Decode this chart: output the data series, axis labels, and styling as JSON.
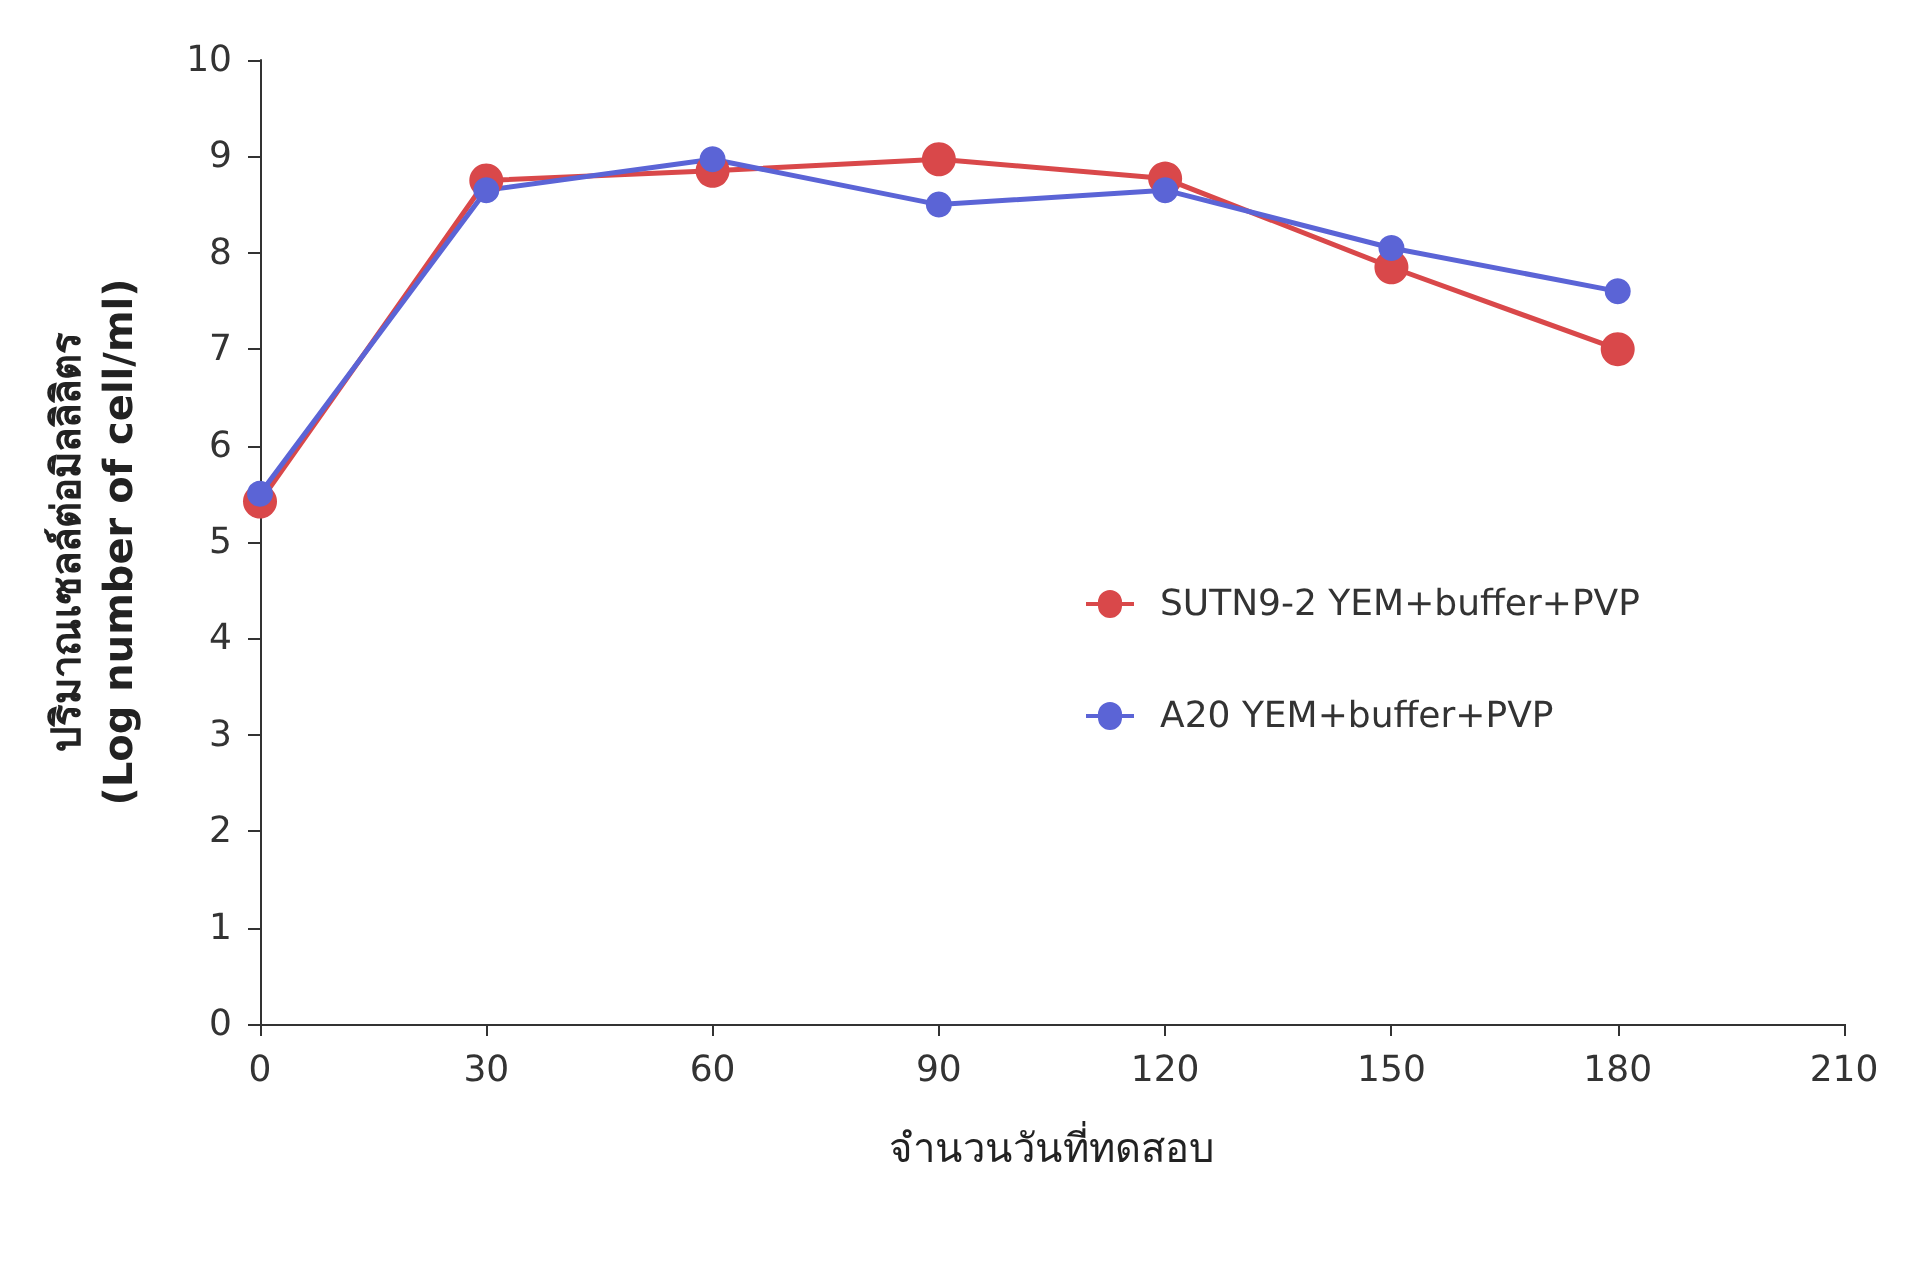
{
  "chart_data": {
    "type": "line",
    "xlabel": "จำนวนวันที่ทดสอบ",
    "ylabel": "ปริมาณเซลล์ต่อมิลลิลิตร\n(Log number of cell/ml)",
    "x": [
      0,
      30,
      60,
      90,
      120,
      150,
      180
    ],
    "series": [
      {
        "name": "SUTN9-2 YEM+buffer+PVP",
        "color": "#d9484a",
        "values": [
          5.42,
          8.75,
          8.85,
          8.97,
          8.77,
          7.85,
          7.0
        ]
      },
      {
        "name": "A20 YEM+buffer+PVP",
        "color": "#5b64d6",
        "values": [
          5.5,
          8.65,
          8.97,
          8.5,
          8.65,
          8.05,
          7.6
        ]
      }
    ],
    "xlim": [
      0,
      210
    ],
    "xticks": [
      0,
      30,
      60,
      90,
      120,
      150,
      180,
      210
    ],
    "ylim": [
      0,
      10
    ],
    "yticks": [
      0,
      1,
      2,
      3,
      4,
      5,
      6,
      7,
      8,
      9,
      10
    ],
    "grid": false,
    "legend": "right",
    "marker": "circle",
    "line_style": "solid"
  }
}
